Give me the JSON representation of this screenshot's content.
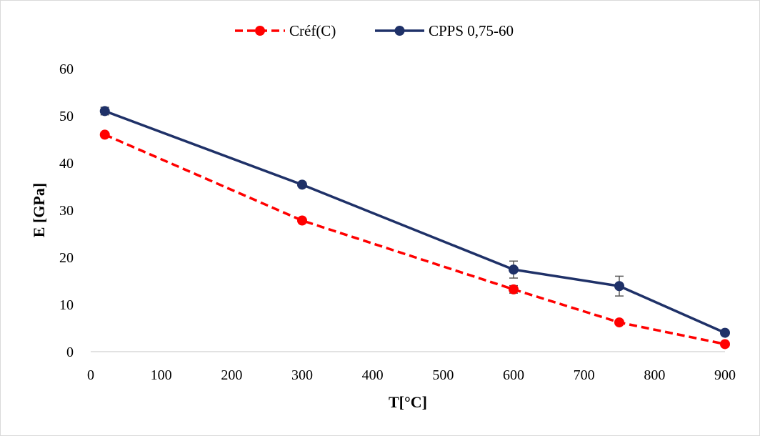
{
  "chart_data": {
    "type": "line",
    "title": "",
    "xlabel": "T[°C]",
    "ylabel": "E [GPa]",
    "xlim": [
      0,
      900
    ],
    "ylim": [
      0,
      60
    ],
    "xticks": [
      0,
      100,
      200,
      300,
      400,
      500,
      600,
      700,
      800,
      900
    ],
    "yticks": [
      0,
      10,
      20,
      30,
      40,
      50,
      60
    ],
    "grid": false,
    "legend_position": "top",
    "series": [
      {
        "name": "Créf(C)",
        "color": "#ff0000",
        "line_style": "dashed",
        "marker": "circle",
        "x": [
          20,
          300,
          600,
          750,
          900
        ],
        "y": [
          46,
          27.8,
          13.2,
          6.2,
          1.6
        ],
        "error": [
          0.5,
          0.4,
          0.8,
          0.4,
          0.3
        ]
      },
      {
        "name": "CPPS 0,75-60",
        "color": "#1f3168",
        "line_style": "solid",
        "marker": "circle",
        "x": [
          20,
          300,
          600,
          750,
          900
        ],
        "y": [
          51,
          35.4,
          17.4,
          13.9,
          4
        ],
        "error": [
          0.8,
          0.4,
          1.8,
          2.1,
          0.3
        ]
      }
    ]
  }
}
